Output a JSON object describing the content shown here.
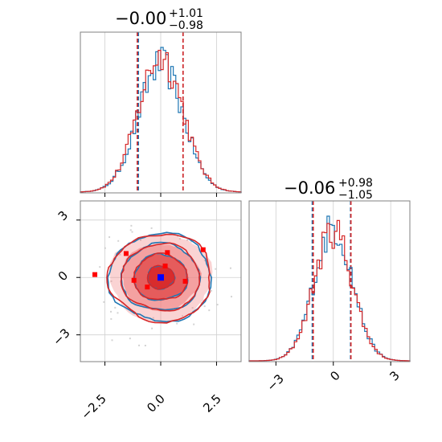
{
  "colors": {
    "blue": "#1f77b4",
    "red": "#d62728",
    "red_light": "#f08080",
    "red_mid": "#e35454",
    "grid": "#d0d0d0",
    "axis": "#808080",
    "marker_blue": "#0000ff",
    "marker_red": "#ff0000"
  },
  "chart_data": [
    {
      "panel": "hist-x",
      "type": "histogram",
      "title": {
        "median": "−0.00",
        "upper": "+1.01",
        "lower": "−0.98"
      },
      "xlim": [
        -3.6,
        3.6
      ],
      "x_ticks": [
        -2.5,
        0.0,
        2.5
      ],
      "grid": true,
      "quantile_lines": {
        "blue": [
          -1.0,
          1.0
        ],
        "red": [
          -1.05,
          1.0
        ]
      },
      "series": [
        {
          "color": "blue",
          "sigma": 1.0,
          "peak": 1.0
        },
        {
          "color": "red",
          "sigma": 1.0,
          "peak": 0.98
        }
      ]
    },
    {
      "panel": "hist-y",
      "type": "histogram",
      "title": {
        "median": "−0.06",
        "upper": "+0.98",
        "lower": "−1.05"
      },
      "xlim": [
        -4.4,
        4.0
      ],
      "x_ticks": [
        -3,
        0,
        3
      ],
      "x_tick_labels": [
        "−3",
        "0",
        "3"
      ],
      "grid": true,
      "quantile_lines": {
        "blue": [
          -1.1,
          0.9
        ],
        "red": [
          -1.05,
          0.92
        ]
      },
      "series": [
        {
          "color": "blue",
          "sigma": 1.0,
          "peak": 1.0
        },
        {
          "color": "red",
          "sigma": 1.0,
          "peak": 0.97
        }
      ]
    },
    {
      "panel": "contour-xy",
      "type": "contour",
      "xlim": [
        -3.6,
        3.6
      ],
      "ylim": [
        -4.4,
        4.0
      ],
      "x_ticks": [
        -2.5,
        0.0,
        2.5
      ],
      "x_tick_labels": [
        "−2.5",
        "0.0",
        "2.5"
      ],
      "y_ticks": [
        3,
        0,
        -3
      ],
      "y_tick_labels": [
        "3",
        "0",
        "−3"
      ],
      "grid": true,
      "contour_levels_sigma": [
        0.6,
        1.2,
        1.75,
        2.3
      ],
      "truth_points": [
        {
          "x": 0.0,
          "y": 0.0,
          "color": "marker_blue"
        },
        {
          "x": 0.3,
          "y": 1.3,
          "color": "marker_red"
        },
        {
          "x": 0.2,
          "y": 0.6,
          "color": "marker_red"
        },
        {
          "x": -0.6,
          "y": -0.5,
          "color": "marker_red"
        },
        {
          "x": -1.2,
          "y": -0.15,
          "color": "marker_red"
        },
        {
          "x": 1.1,
          "y": -0.2,
          "color": "marker_red"
        },
        {
          "x": -1.55,
          "y": 1.25,
          "color": "marker_red"
        },
        {
          "x": 1.9,
          "y": 1.45,
          "color": "marker_red"
        },
        {
          "x": -2.95,
          "y": 0.15,
          "color": "marker_red"
        }
      ]
    }
  ]
}
